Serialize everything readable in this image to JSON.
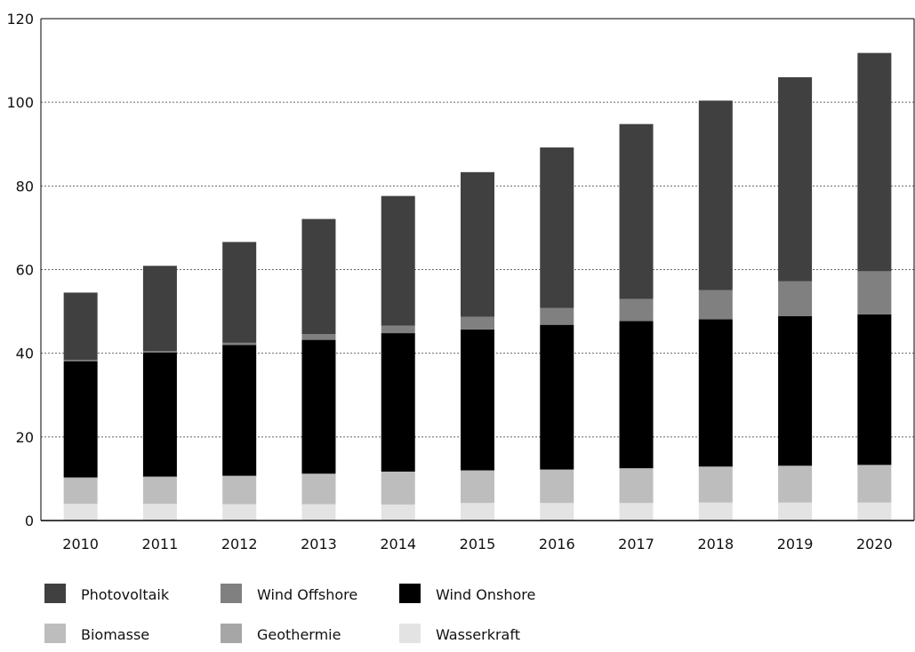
{
  "chart_data": {
    "type": "bar",
    "stacked": true,
    "categories": [
      "2010",
      "2011",
      "2012",
      "2013",
      "2014",
      "2015",
      "2016",
      "2017",
      "2018",
      "2019",
      "2020"
    ],
    "ylim": [
      0,
      120
    ],
    "yticks": [
      "0",
      "20",
      "40",
      "60",
      "80",
      "100",
      "120"
    ],
    "grid": "horizontal dotted at y-ticks",
    "legend_position": "bottom",
    "series": [
      {
        "name": "Wasserkraft",
        "color": "#e3e3e3",
        "values": [
          4.0,
          4.0,
          3.9,
          3.9,
          3.9,
          4.2,
          4.2,
          4.2,
          4.3,
          4.3,
          4.3
        ]
      },
      {
        "name": "Geothermie",
        "color": "#a6a6a6",
        "values": [
          0.0,
          0.0,
          0.0,
          0.0,
          0.2,
          0.0,
          0.0,
          0.0,
          0.0,
          0.0,
          0.0
        ]
      },
      {
        "name": "Biomasse",
        "color": "#bdbdbd",
        "values": [
          6.3,
          6.5,
          6.8,
          7.3,
          7.6,
          7.8,
          8.0,
          8.3,
          8.6,
          8.8,
          9.0
        ]
      },
      {
        "name": "Wind Onshore",
        "color": "#000000",
        "values": [
          27.8,
          29.7,
          31.3,
          32.0,
          33.1,
          33.7,
          34.6,
          35.2,
          35.2,
          35.8,
          36.0
        ]
      },
      {
        "name": "Wind Offshore",
        "color": "#808080",
        "values": [
          0.3,
          0.3,
          0.5,
          1.4,
          1.8,
          3.0,
          4.0,
          5.3,
          7.0,
          8.3,
          10.3
        ]
      },
      {
        "name": "Photovoltaik",
        "color": "#404040",
        "values": [
          16.1,
          20.4,
          24.1,
          27.5,
          31.0,
          34.6,
          38.4,
          41.8,
          45.3,
          48.8,
          52.2
        ]
      }
    ],
    "legend_order": [
      "Photovoltaik",
      "Wind Offshore",
      "Wind Onshore",
      "Biomasse",
      "Geothermie",
      "Wasserkraft"
    ]
  }
}
